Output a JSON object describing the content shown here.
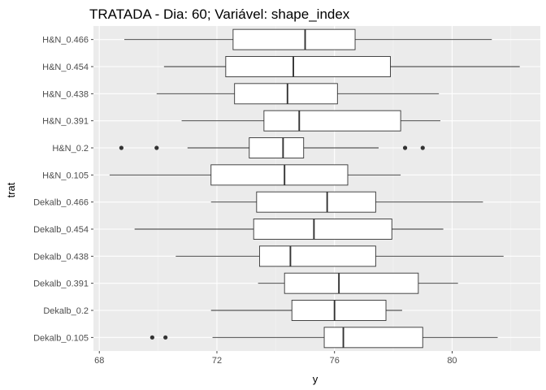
{
  "chart_data": {
    "type": "boxplot",
    "orientation": "horizontal",
    "title": "TRATADA - Dia: 60; Variável: shape_index",
    "xlabel": "y",
    "ylabel": "trat",
    "xlim": [
      67.8,
      83.0
    ],
    "x_ticks": [
      68,
      72,
      76,
      80
    ],
    "x_tick_labels": [
      "68",
      "72",
      "76",
      "80"
    ],
    "grid": true,
    "colors": {
      "panel_bg": "#ebebeb",
      "grid_major": "#ffffff",
      "grid_minor": "#f5f5f5",
      "box_fill": "#ffffff",
      "box_stroke": "#333333",
      "outlier": "#333333"
    },
    "categories": [
      "H&N_0.466",
      "H&N_0.454",
      "H&N_0.438",
      "H&N_0.391",
      "H&N_0.2",
      "H&N_0.105",
      "Dekalb_0.466",
      "Dekalb_0.454",
      "Dekalb_0.438",
      "Dekalb_0.391",
      "Dekalb_0.2",
      "Dekalb_0.105"
    ],
    "boxes": [
      {
        "label": "H&N_0.466",
        "min": 68.85,
        "q1": 72.55,
        "median": 75.0,
        "q3": 76.7,
        "max": 81.35,
        "outliers": []
      },
      {
        "label": "H&N_0.454",
        "min": 70.2,
        "q1": 72.3,
        "median": 74.6,
        "q3": 77.9,
        "max": 82.3,
        "outliers": []
      },
      {
        "label": "H&N_0.438",
        "min": 69.95,
        "q1": 72.6,
        "median": 74.4,
        "q3": 76.1,
        "max": 79.55,
        "outliers": []
      },
      {
        "label": "H&N_0.391",
        "min": 70.8,
        "q1": 73.6,
        "median": 74.8,
        "q3": 78.25,
        "max": 79.6,
        "outliers": []
      },
      {
        "label": "H&N_0.2",
        "min": 71.0,
        "q1": 73.1,
        "median": 74.25,
        "q3": 74.95,
        "max": 77.5,
        "outliers": [
          68.75,
          69.95,
          78.4,
          79.0
        ]
      },
      {
        "label": "H&N_0.105",
        "min": 68.35,
        "q1": 71.8,
        "median": 74.3,
        "q3": 76.45,
        "max": 78.25,
        "outliers": []
      },
      {
        "label": "Dekalb_0.466",
        "min": 71.8,
        "q1": 73.35,
        "median": 75.75,
        "q3": 77.4,
        "max": 81.05,
        "outliers": []
      },
      {
        "label": "Dekalb_0.454",
        "min": 69.2,
        "q1": 73.25,
        "median": 75.3,
        "q3": 77.95,
        "max": 79.7,
        "outliers": []
      },
      {
        "label": "Dekalb_0.438",
        "min": 70.6,
        "q1": 73.45,
        "median": 74.5,
        "q3": 77.4,
        "max": 81.75,
        "outliers": []
      },
      {
        "label": "Dekalb_0.391",
        "min": 73.4,
        "q1": 74.3,
        "median": 76.15,
        "q3": 78.85,
        "max": 80.2,
        "outliers": []
      },
      {
        "label": "Dekalb_0.2",
        "min": 71.8,
        "q1": 74.55,
        "median": 76.0,
        "q3": 77.75,
        "max": 78.3,
        "outliers": []
      },
      {
        "label": "Dekalb_0.105",
        "min": 71.85,
        "q1": 75.65,
        "median": 76.3,
        "q3": 79.0,
        "max": 81.55,
        "outliers": [
          69.8,
          70.25
        ]
      }
    ]
  }
}
